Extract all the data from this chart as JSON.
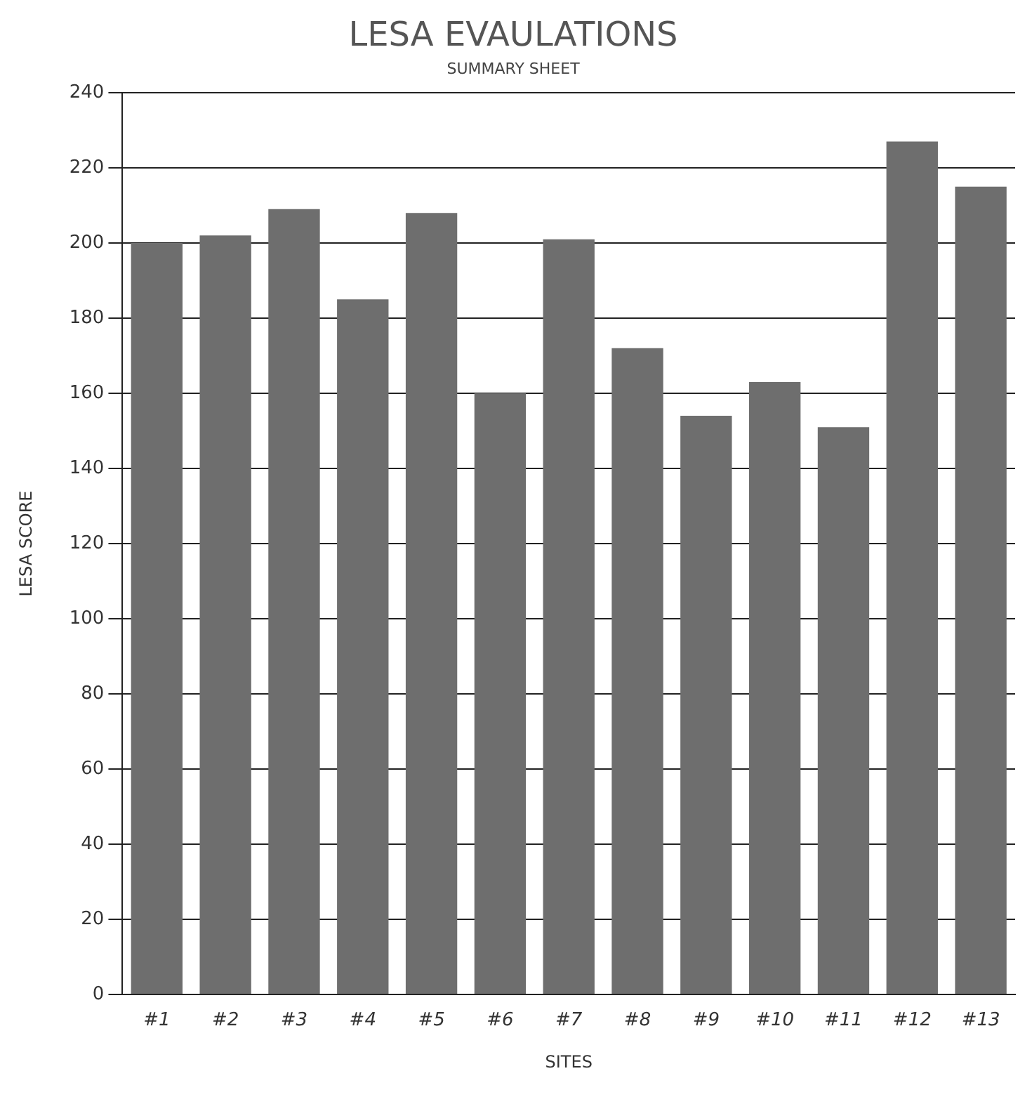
{
  "chart_data": {
    "type": "bar",
    "title": "LESA EVAULATIONS",
    "subtitle": "SUMMARY SHEET",
    "xlabel": "SITES",
    "ylabel": "LESA SCORE",
    "categories": [
      "#1",
      "#2",
      "#3",
      "#4",
      "#5",
      "#6",
      "#7",
      "#8",
      "#9",
      "#10",
      "#11",
      "#12",
      "#13"
    ],
    "values": [
      200,
      202,
      209,
      185,
      208,
      160,
      201,
      172,
      154,
      163,
      151,
      227,
      215
    ],
    "color": "#6e6e6e",
    "ylim": [
      0,
      240
    ],
    "yticks": [
      0,
      20,
      40,
      60,
      80,
      100,
      120,
      140,
      160,
      180,
      200,
      220,
      240
    ],
    "grid": "y",
    "legend": false
  }
}
